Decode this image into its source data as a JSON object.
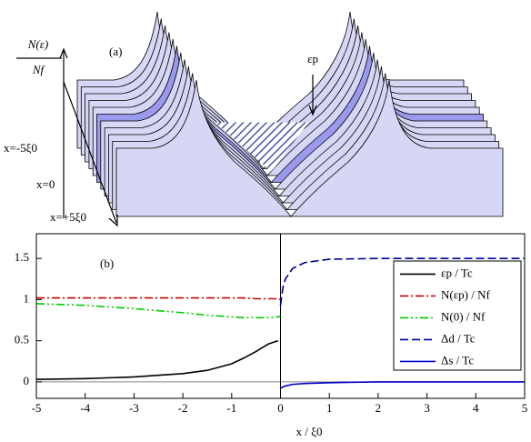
{
  "chart_data": [
    {
      "type": "waterfall",
      "title": "(a)",
      "y_label": [
        "N(ε)",
        "Nf"
      ],
      "depth_labels": [
        "x=-5ξ0",
        "x=0",
        "x=+5ξ0"
      ],
      "annotations": [
        "εp"
      ]
    },
    {
      "type": "line",
      "title": "(b)",
      "x_label": "x / ξ0",
      "x": [
        -5,
        -4,
        -3,
        -2,
        -1.5,
        -1,
        -0.75,
        -0.5,
        -0.25,
        -0.05,
        0,
        0.05,
        0.1,
        0.25,
        0.5,
        1,
        2,
        3,
        4,
        5
      ],
      "xlim": [
        -5,
        5
      ],
      "xticks": [
        -5,
        -4,
        -3,
        -2,
        -1,
        0,
        1,
        2,
        3,
        4,
        5
      ],
      "ylim": [
        -0.2,
        1.8
      ],
      "yticks": [
        0,
        0.5,
        1,
        1.5
      ],
      "legend": "right",
      "series": [
        {
          "name": "εp / Tc",
          "color": "#000000",
          "dash": "solid",
          "values": [
            0.03,
            0.04,
            0.06,
            0.1,
            0.14,
            0.22,
            0.29,
            0.37,
            0.46,
            0.5,
            null,
            null,
            null,
            null,
            null,
            null,
            null,
            null,
            null,
            null
          ]
        },
        {
          "name": "N(εp) / Nf",
          "color": "#cc0000",
          "dash": "dashdot",
          "values": [
            1.02,
            1.02,
            1.02,
            1.02,
            1.02,
            1.02,
            1.02,
            1.01,
            1.01,
            1.01,
            1.0,
            null,
            null,
            null,
            null,
            null,
            null,
            null,
            null,
            null
          ]
        },
        {
          "name": "N(0) / Nf",
          "color": "#00cc00",
          "dash": "dashdotdot",
          "values": [
            0.95,
            0.93,
            0.89,
            0.84,
            0.81,
            0.79,
            0.78,
            0.78,
            0.78,
            0.79,
            0.8,
            null,
            null,
            null,
            null,
            null,
            null,
            null,
            null,
            null
          ]
        },
        {
          "name": "Δd / Tc",
          "color": "#000099",
          "dash": "dashed",
          "values": [
            null,
            null,
            null,
            null,
            null,
            null,
            null,
            null,
            null,
            null,
            0.93,
            1.15,
            1.25,
            1.38,
            1.45,
            1.49,
            1.5,
            1.5,
            1.5,
            1.5
          ]
        },
        {
          "name": "Δs / Tc",
          "color": "#0000cc",
          "dash": "solid",
          "values": [
            null,
            null,
            null,
            null,
            null,
            null,
            null,
            null,
            null,
            null,
            -0.08,
            -0.06,
            -0.05,
            -0.03,
            -0.02,
            -0.01,
            0,
            0,
            0,
            0
          ]
        }
      ]
    }
  ]
}
